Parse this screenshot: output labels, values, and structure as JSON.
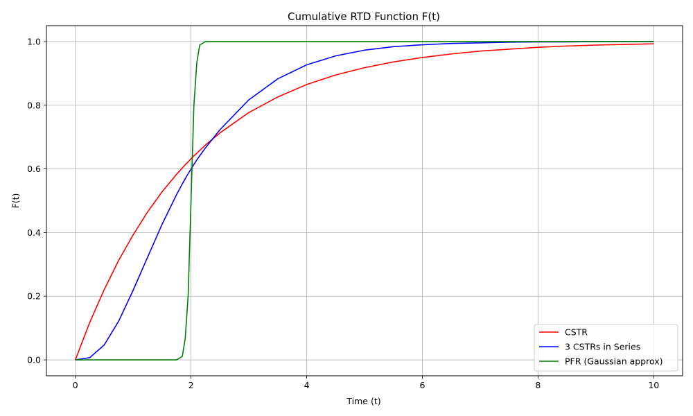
{
  "chart_data": {
    "type": "line",
    "title": "Cumulative RTD Function F(t)",
    "xlabel": "Time (t)",
    "ylabel": "F(t)",
    "xlim": [
      -0.5,
      10.5
    ],
    "ylim": [
      -0.05,
      1.05
    ],
    "xticks": [
      0,
      2,
      4,
      6,
      8,
      10
    ],
    "yticks": [
      0.0,
      0.2,
      0.4,
      0.6,
      0.8,
      1.0
    ],
    "xtick_labels": [
      "0",
      "2",
      "4",
      "6",
      "8",
      "10"
    ],
    "ytick_labels": [
      "0.0",
      "0.2",
      "0.4",
      "0.6",
      "0.8",
      "1.0"
    ],
    "grid": true,
    "legend_position": "lower-right",
    "x": [
      0,
      0.25,
      0.5,
      0.75,
      1.0,
      1.25,
      1.5,
      1.75,
      1.85,
      1.9,
      1.95,
      2.0,
      2.05,
      2.1,
      2.15,
      2.25,
      2.5,
      3.0,
      3.5,
      4.0,
      4.5,
      5.0,
      5.5,
      6.0,
      6.5,
      7.0,
      7.5,
      8.0,
      8.5,
      9.0,
      9.5,
      10.0
    ],
    "series": [
      {
        "name": "CSTR",
        "color": "#ff0000",
        "values": [
          0,
          0.118,
          0.221,
          0.313,
          0.393,
          0.465,
          0.528,
          0.583,
          0.603,
          0.613,
          0.622,
          0.632,
          0.641,
          0.649,
          0.658,
          0.675,
          0.713,
          0.777,
          0.826,
          0.865,
          0.895,
          0.918,
          0.936,
          0.95,
          0.961,
          0.97,
          0.976,
          0.982,
          0.986,
          0.989,
          0.991,
          0.993
        ]
      },
      {
        "name": "3 CSTRs in Series",
        "color": "#0000ff",
        "values": [
          0,
          0.007,
          0.047,
          0.122,
          0.219,
          0.323,
          0.426,
          0.519,
          0.553,
          0.569,
          0.585,
          0.599,
          0.614,
          0.628,
          0.641,
          0.666,
          0.723,
          0.817,
          0.883,
          0.927,
          0.955,
          0.973,
          0.984,
          0.99,
          0.994,
          0.996,
          0.998,
          0.999,
          0.999,
          1.0,
          1.0,
          1.0
        ]
      },
      {
        "name": "PFR (Gaussian approx)",
        "color": "#008000",
        "values": [
          0,
          0,
          0,
          0,
          0,
          0,
          0,
          0,
          0.011,
          0.067,
          0.2,
          0.5,
          0.8,
          0.933,
          0.989,
          1.0,
          1.0,
          1.0,
          1.0,
          1.0,
          1.0,
          1.0,
          1.0,
          1.0,
          1.0,
          1.0,
          1.0,
          1.0,
          1.0,
          1.0,
          1.0,
          1.0
        ]
      }
    ]
  }
}
